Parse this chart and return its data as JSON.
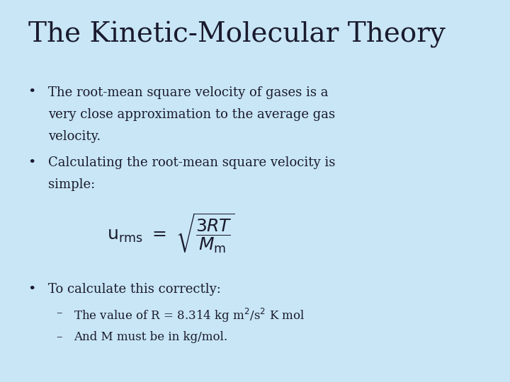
{
  "background_color": "#c8e6f5",
  "title": "The Kinetic-Molecular Theory",
  "title_fontsize": 28,
  "body_fontsize": 13,
  "sub_fontsize": 12,
  "formula_fontsize": 18,
  "text_color": "#1a1a2e",
  "bullet1_line1": "The root-mean square velocity of gases is a",
  "bullet1_line2": "very close approximation to the average gas",
  "bullet1_line3": "velocity.",
  "bullet2_line1": "Calculating the root-mean square velocity is",
  "bullet2_line2": "simple:",
  "bullet3": "To calculate this correctly:",
  "sub1": "The value of R = 8.314 kg m$^2$/s$^2$ K mol",
  "sub2": "And M must be in kg/mol."
}
